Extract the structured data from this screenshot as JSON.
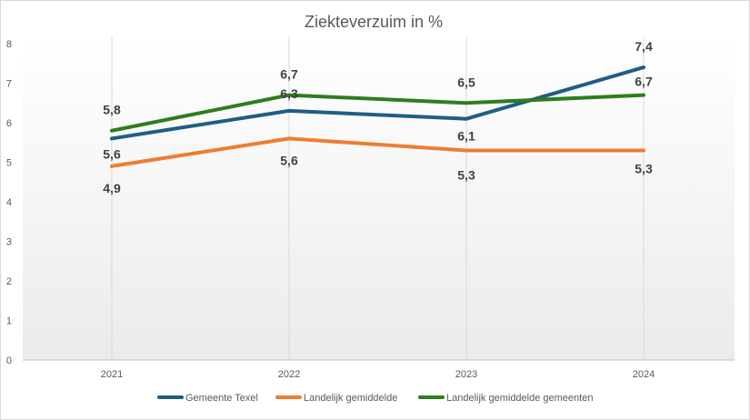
{
  "chart_data": {
    "type": "line",
    "title": "Ziekteverzuim in %",
    "xlabel": "",
    "ylabel": "",
    "categories": [
      "2021",
      "2022",
      "2023",
      "2024"
    ],
    "ylim": [
      0,
      8
    ],
    "yticks": [
      "0",
      "1",
      "2",
      "3",
      "4",
      "5",
      "6",
      "7",
      "8"
    ],
    "grid": "vertical",
    "legend_position": "bottom",
    "series": [
      {
        "name": "Gemeente Texel",
        "color": "#1f5e82",
        "values": [
          5.6,
          6.3,
          6.1,
          7.4
        ],
        "labels": [
          "5,6",
          "6,3",
          "6,1",
          "7,4"
        ]
      },
      {
        "name": "Landelijk gemiddelde",
        "color": "#ed7d31",
        "values": [
          4.9,
          5.6,
          5.3,
          5.3
        ],
        "labels": [
          "4,9",
          "5,6",
          "5,3",
          "5,3"
        ]
      },
      {
        "name": "Landelijk gemiddelde gemeenten",
        "color": "#2e7d1e",
        "values": [
          5.8,
          6.7,
          6.5,
          6.7
        ],
        "labels": [
          "5,8",
          "6,7",
          "6,5",
          "6,7"
        ]
      }
    ]
  }
}
